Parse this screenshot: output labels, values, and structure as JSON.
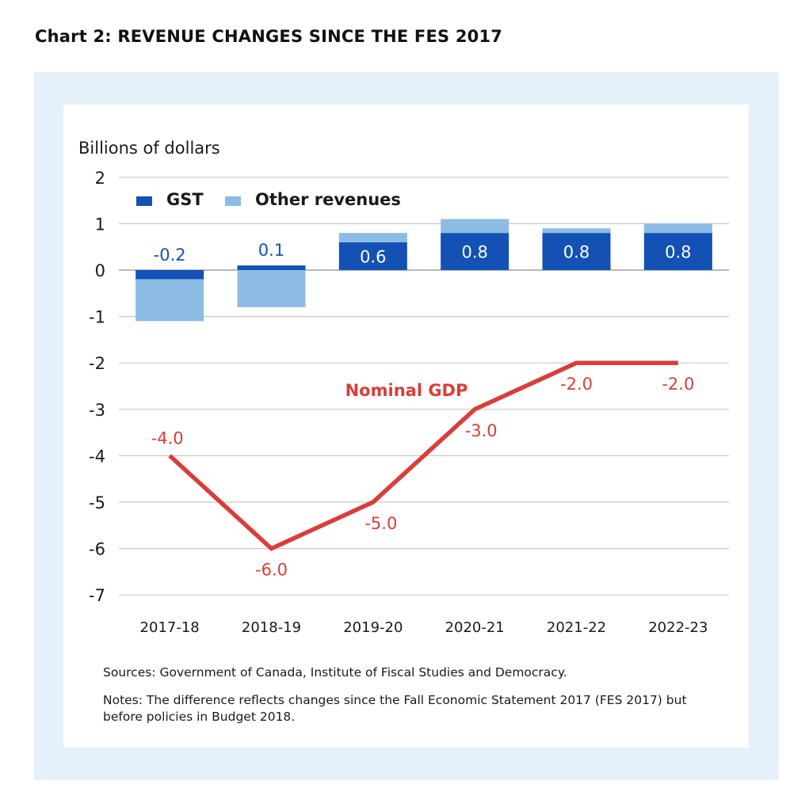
{
  "title": "Chart 2: REVENUE CHANGES SINCE THE FES 2017",
  "colors": {
    "gst": "#1451b4",
    "other": "#8cbce3",
    "gdp_line": "#d93e3a",
    "panel_bg": "#e4f0fa",
    "grid": "#c8c8c8"
  },
  "chart_data": {
    "type": "bar",
    "ylabel": "Billions of dollars",
    "ylim": [
      -7,
      2
    ],
    "yticks": [
      "2",
      "1",
      "0",
      "-1",
      "-2",
      "-3",
      "-4",
      "-5",
      "-6",
      "-7"
    ],
    "categories": [
      "2017-18",
      "2018-19",
      "2019-20",
      "2020-21",
      "2021-22",
      "2022-23"
    ],
    "series": [
      {
        "name": "GST",
        "kind": "stacked-bar",
        "values": [
          -0.2,
          0.1,
          0.6,
          0.8,
          0.8,
          0.8
        ],
        "labels": [
          "-0.2",
          "0.1",
          "0.6",
          "0.8",
          "0.8",
          "0.8"
        ]
      },
      {
        "name": "Other revenues",
        "kind": "stacked-bar",
        "values": [
          -0.9,
          -0.8,
          0.2,
          0.3,
          0.1,
          0.2
        ]
      },
      {
        "name": "Nominal GDP",
        "kind": "line",
        "values": [
          -4.0,
          -6.0,
          -5.0,
          -3.0,
          -2.0,
          -2.0
        ],
        "labels": [
          "-4.0",
          "-6.0",
          "-5.0",
          "-3.0",
          "-2.0",
          "-2.0"
        ]
      }
    ],
    "legend": [
      "GST",
      "Other revenues"
    ],
    "legend_position": "top-left",
    "grid": true
  },
  "sources": "Sources: Government of Canada, Institute of Fiscal Studies and Democracy.",
  "notes": "Notes: The difference reflects changes since the Fall Economic Statement 2017 (FES 2017) but before policies in Budget 2018."
}
